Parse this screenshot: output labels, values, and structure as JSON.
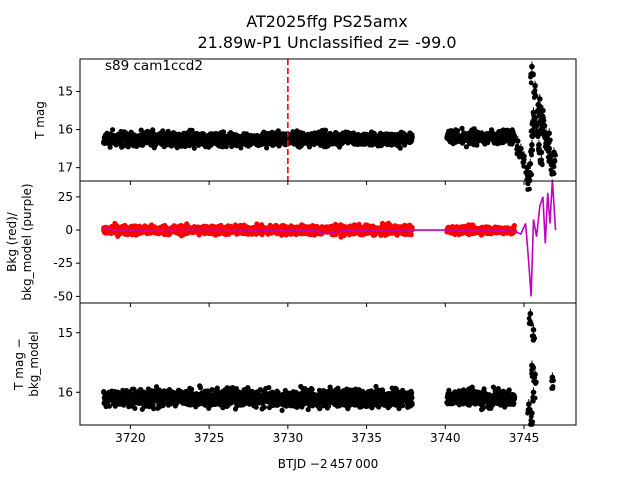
{
  "figure": {
    "title_line1": "AT2025ffg  PS25amx",
    "title_line2": "21.89w-P1 Unclassified z= -99.0",
    "annotation": "s89 cam1ccd2",
    "xlabel": "BTJD −2 457 000"
  },
  "chart_data": [
    {
      "type": "scatter",
      "panel": "top",
      "ylabel": "T mag",
      "y_inverted": true,
      "xlim": [
        3716.8,
        3748.3
      ],
      "ylim": [
        17.35,
        14.15
      ],
      "xticks": [
        3720,
        3725,
        3730,
        3735,
        3740,
        3745
      ],
      "yticks": [
        15,
        16,
        17
      ],
      "vline": {
        "x": 3730.0,
        "color": "#ff0000",
        "style": "dashed"
      },
      "series": [
        {
          "color": "#000000",
          "segments": [
            {
              "x_start": 3718.3,
              "x_end": 3737.9,
              "y_center": 16.25,
              "y_spread": 0.32
            },
            {
              "x_start": 3740.1,
              "x_end": 3744.4,
              "y_center": 16.2,
              "y_spread": 0.3
            }
          ],
          "flare_points": [
            [
              3744.6,
              16.3
            ],
            [
              3744.8,
              16.5
            ],
            [
              3745.0,
              16.7
            ],
            [
              3745.2,
              17.0
            ],
            [
              3745.3,
              17.25
            ],
            [
              3745.4,
              16.9
            ],
            [
              3745.5,
              16.4
            ],
            [
              3745.55,
              15.85
            ],
            [
              3745.6,
              15.55
            ],
            [
              3745.7,
              15.7
            ],
            [
              3745.8,
              15.9
            ],
            [
              3745.9,
              15.35
            ],
            [
              3746.0,
              15.6
            ],
            [
              3746.1,
              15.8
            ],
            [
              3746.2,
              15.5
            ],
            [
              3746.3,
              15.9
            ],
            [
              3746.4,
              16.1
            ],
            [
              3746.5,
              16.3
            ],
            [
              3746.6,
              16.5
            ],
            [
              3746.7,
              16.7
            ],
            [
              3746.8,
              16.9
            ],
            [
              3746.9,
              16.6
            ],
            [
              3746.1,
              16.6
            ],
            [
              3745.95,
              16.4
            ],
            [
              3746.6,
              16.1
            ],
            [
              3745.5,
              14.35
            ],
            [
              3745.7,
              14.85
            ],
            [
              3746.0,
              15.2
            ]
          ]
        }
      ]
    },
    {
      "type": "line",
      "panel": "middle",
      "ylabel_line1": "Bkg (red)/",
      "ylabel_line2": "bkg_model (purple)",
      "xlim": [
        3716.8,
        3748.3
      ],
      "ylim": [
        -55,
        37
      ],
      "yticks": [
        -50,
        -25,
        0,
        25
      ],
      "series": [
        {
          "color": "#ff0000",
          "kind": "points",
          "segments": [
            {
              "x_start": 3718.3,
              "x_end": 3737.9,
              "y_center": 0,
              "y_spread": 6
            },
            {
              "x_start": 3740.1,
              "x_end": 3744.4,
              "y_center": 0,
              "y_spread": 5
            }
          ]
        },
        {
          "color": "#bf00bf",
          "kind": "line",
          "points": [
            [
              3718.3,
              2
            ],
            [
              3719,
              0
            ],
            [
              3720,
              0
            ],
            [
              3724,
              0.5
            ],
            [
              3728,
              0
            ],
            [
              3730,
              0
            ],
            [
              3731.8,
              -0.5
            ],
            [
              3732.5,
              -3
            ],
            [
              3733.2,
              -1
            ],
            [
              3734,
              0
            ],
            [
              3737.9,
              0
            ],
            [
              3740.1,
              0
            ],
            [
              3743,
              0
            ],
            [
              3744.4,
              -1
            ],
            [
              3744.8,
              -3
            ],
            [
              3745.1,
              5
            ],
            [
              3745.3,
              -25
            ],
            [
              3745.45,
              -50
            ],
            [
              3745.6,
              8
            ],
            [
              3745.8,
              -5
            ],
            [
              3746.0,
              18
            ],
            [
              3746.2,
              25
            ],
            [
              3746.35,
              -10
            ],
            [
              3746.5,
              28
            ],
            [
              3746.65,
              5
            ],
            [
              3746.8,
              38
            ],
            [
              3747.0,
              0
            ]
          ]
        }
      ]
    },
    {
      "type": "scatter",
      "panel": "bottom",
      "ylabel_line1": "T mag −",
      "ylabel_line2": "bkg_model",
      "y_inverted": true,
      "xlim": [
        3716.8,
        3748.3
      ],
      "ylim": [
        16.55,
        14.5
      ],
      "yticks": [
        15,
        16
      ],
      "series": [
        {
          "color": "#000000",
          "segments": [
            {
              "x_start": 3718.3,
              "x_end": 3737.9,
              "y_center": 16.1,
              "y_spread": 0.26
            },
            {
              "x_start": 3740.1,
              "x_end": 3744.4,
              "y_center": 16.1,
              "y_spread": 0.24
            }
          ],
          "flare_points": [
            [
              3745.4,
              14.68
            ],
            [
              3745.6,
              14.95
            ],
            [
              3745.5,
              15.55
            ],
            [
              3745.7,
              15.7
            ],
            [
              3745.3,
              16.2
            ],
            [
              3745.5,
              16.35
            ],
            [
              3746.8,
              15.75
            ],
            [
              3745.6,
              16.0
            ]
          ]
        }
      ]
    }
  ]
}
